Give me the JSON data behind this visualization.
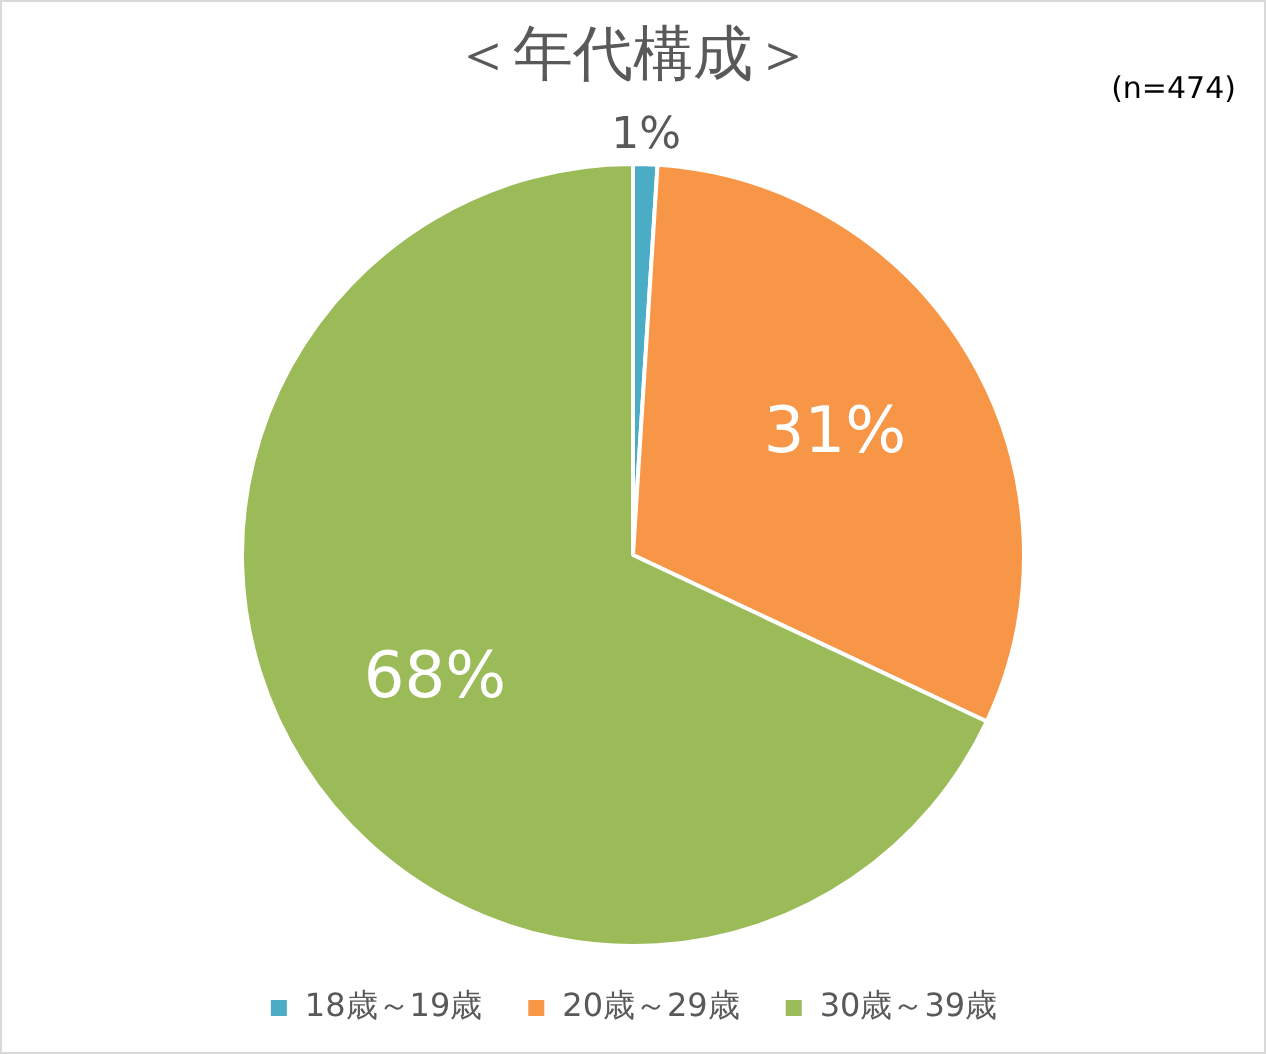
{
  "chart_data": {
    "type": "pie",
    "title": "＜年代構成＞",
    "annotations": [
      "(n=474)"
    ],
    "categories": [
      "18歳～19歳",
      "20歳～29歳",
      "30歳～39歳"
    ],
    "values": [
      1,
      31,
      68
    ],
    "colors": [
      "#4bacc6",
      "#f79646",
      "#9bbb59"
    ],
    "value_labels": [
      "1%",
      "31%",
      "68%"
    ],
    "legend": "bottom"
  }
}
